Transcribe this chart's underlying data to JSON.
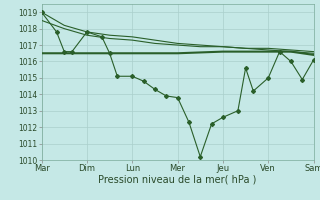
{
  "title": "",
  "xlabel": "Pression niveau de la mer( hPa )",
  "background_color": "#c5e8e6",
  "grid_color": "#aacfcc",
  "line_color": "#2a5f2a",
  "xlim": [
    0,
    6
  ],
  "ylim": [
    1010,
    1019.5
  ],
  "yticks": [
    1010,
    1011,
    1012,
    1013,
    1014,
    1015,
    1016,
    1017,
    1018,
    1019
  ],
  "xtick_labels": [
    "Mar",
    "Dim",
    "Lun",
    "Mer",
    "Jeu",
    "Ven",
    "Sam"
  ],
  "xtick_positions": [
    0,
    1,
    2,
    3,
    4,
    5,
    6
  ],
  "series_main": {
    "x": [
      0,
      0.33,
      0.5,
      0.67,
      1.0,
      1.33,
      1.5,
      1.67,
      2.0,
      2.25,
      2.5,
      2.75,
      3.0,
      3.25,
      3.5,
      3.75,
      4.0,
      4.33,
      4.5,
      4.67,
      5.0,
      5.25,
      5.5,
      5.75,
      6.0
    ],
    "y": [
      1019.0,
      1017.8,
      1016.6,
      1016.6,
      1017.8,
      1017.5,
      1016.5,
      1015.1,
      1015.1,
      1014.8,
      1014.3,
      1013.9,
      1013.8,
      1012.3,
      1010.2,
      1012.2,
      1012.6,
      1013.0,
      1015.6,
      1014.2,
      1015.0,
      1016.6,
      1016.0,
      1014.9,
      1016.1
    ]
  },
  "series_flat": {
    "x": [
      0,
      0.5,
      1,
      2,
      3,
      4,
      4.5,
      5,
      5.5,
      6
    ],
    "y": [
      1016.5,
      1016.5,
      1016.5,
      1016.5,
      1016.5,
      1016.6,
      1016.6,
      1016.6,
      1016.6,
      1016.4
    ]
  },
  "series_upper1": {
    "x": [
      0,
      0.5,
      1,
      1.5,
      2,
      2.5,
      3,
      3.5,
      4,
      4.5,
      5,
      5.5,
      6
    ],
    "y": [
      1019.0,
      1018.2,
      1017.8,
      1017.6,
      1017.5,
      1017.3,
      1017.1,
      1017.0,
      1016.9,
      1016.8,
      1016.8,
      1016.7,
      1016.6
    ]
  },
  "series_upper2": {
    "x": [
      0,
      0.5,
      1,
      1.5,
      2,
      2.5,
      3,
      3.5,
      4,
      4.5,
      5,
      5.5,
      6
    ],
    "y": [
      1018.5,
      1018.0,
      1017.6,
      1017.4,
      1017.3,
      1017.1,
      1017.0,
      1016.9,
      1016.9,
      1016.8,
      1016.7,
      1016.6,
      1016.5
    ]
  }
}
